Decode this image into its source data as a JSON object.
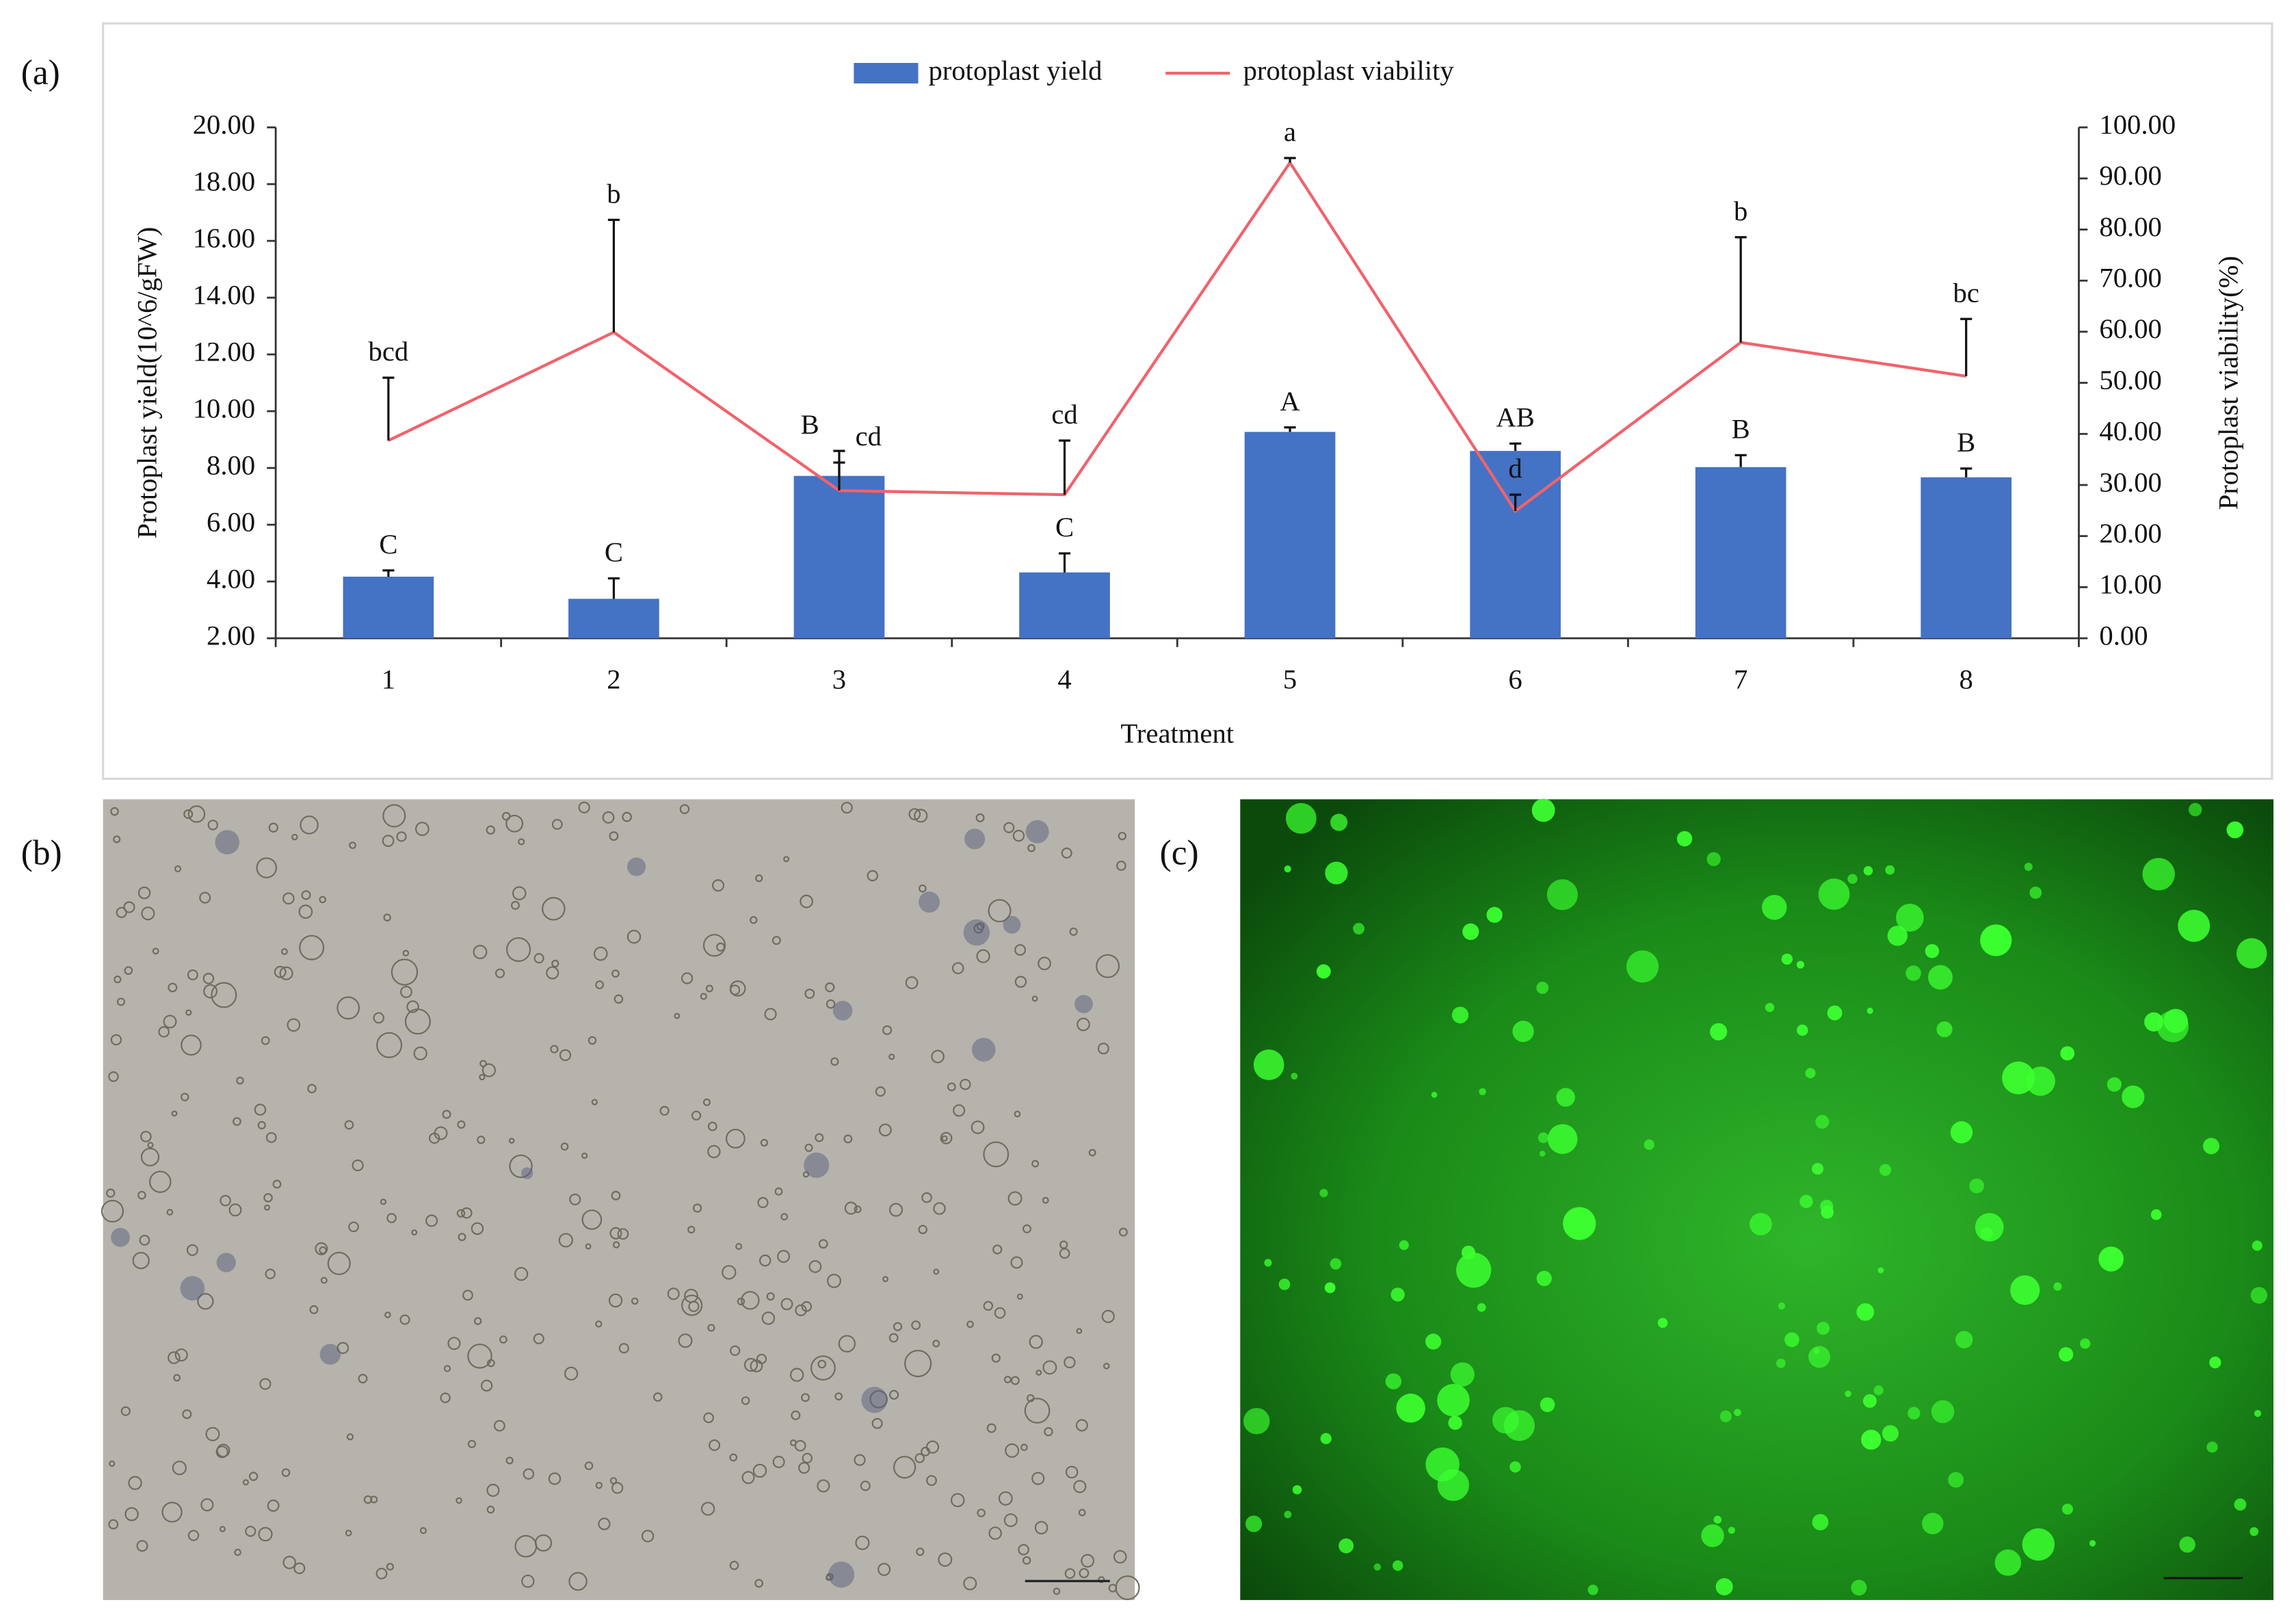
{
  "panel_labels": [
    "(a)",
    "(b)",
    "(c)"
  ],
  "chart_data": {
    "type": "bar-line",
    "x_label": "Treatment",
    "y_label": "Protoplast yield(10^6/gFW)",
    "y2_label": "Protoplast viability(%)",
    "categories": [
      "1",
      "2",
      "3",
      "4",
      "5",
      "6",
      "7",
      "8"
    ],
    "series": [
      {
        "name": "protoplast yield",
        "type": "bar",
        "color": "#4472c4",
        "values": [
          4.17,
          3.39,
          7.72,
          4.32,
          9.27,
          8.6,
          8.03,
          7.67
        ],
        "errors": [
          0.22,
          0.72,
          0.88,
          0.67,
          0.16,
          0.26,
          0.42,
          0.31
        ],
        "labels": [
          "C",
          "C",
          "B",
          "C",
          "A",
          "AB",
          "B",
          "B"
        ]
      },
      {
        "name": "protoplast viability",
        "type": "line",
        "color": "#f0636c",
        "axis": "y2",
        "values": [
          38.7,
          59.9,
          28.9,
          28.1,
          93.1,
          24.9,
          57.9,
          51.3
        ],
        "errors": [
          12.3,
          22.0,
          5.5,
          10.6,
          0.9,
          3.2,
          20.6,
          11.2
        ],
        "labels": [
          "bcd",
          "b",
          "cd",
          "cd",
          "a",
          "d",
          "b",
          "bc"
        ]
      }
    ],
    "ylim": [
      2,
      20
    ],
    "yticks": [
      {
        "value": 2,
        "label": "2.00"
      },
      {
        "value": 4,
        "label": "4.00"
      },
      {
        "value": 6,
        "label": "6.00"
      },
      {
        "value": 8,
        "label": "8.00"
      },
      {
        "value": 10,
        "label": "10.00"
      },
      {
        "value": 12,
        "label": "12.00"
      },
      {
        "value": 14,
        "label": "14.00"
      },
      {
        "value": 16,
        "label": "16.00"
      },
      {
        "value": 18,
        "label": "18.00"
      },
      {
        "value": 20,
        "label": "20.00"
      }
    ],
    "y2lim": [
      0,
      100
    ],
    "y2ticks": [
      {
        "value": 0,
        "label": "0.00"
      },
      {
        "value": 10,
        "label": "10.00"
      },
      {
        "value": 20,
        "label": "20.00"
      },
      {
        "value": 30,
        "label": "30.00"
      },
      {
        "value": 40,
        "label": "40.00"
      },
      {
        "value": 50,
        "label": "50.00"
      },
      {
        "value": 60,
        "label": "60.00"
      },
      {
        "value": 70,
        "label": "70.00"
      },
      {
        "value": 80,
        "label": "80.00"
      },
      {
        "value": 90,
        "label": "90.00"
      },
      {
        "value": 100,
        "label": "100.00"
      }
    ],
    "legend": "top"
  }
}
